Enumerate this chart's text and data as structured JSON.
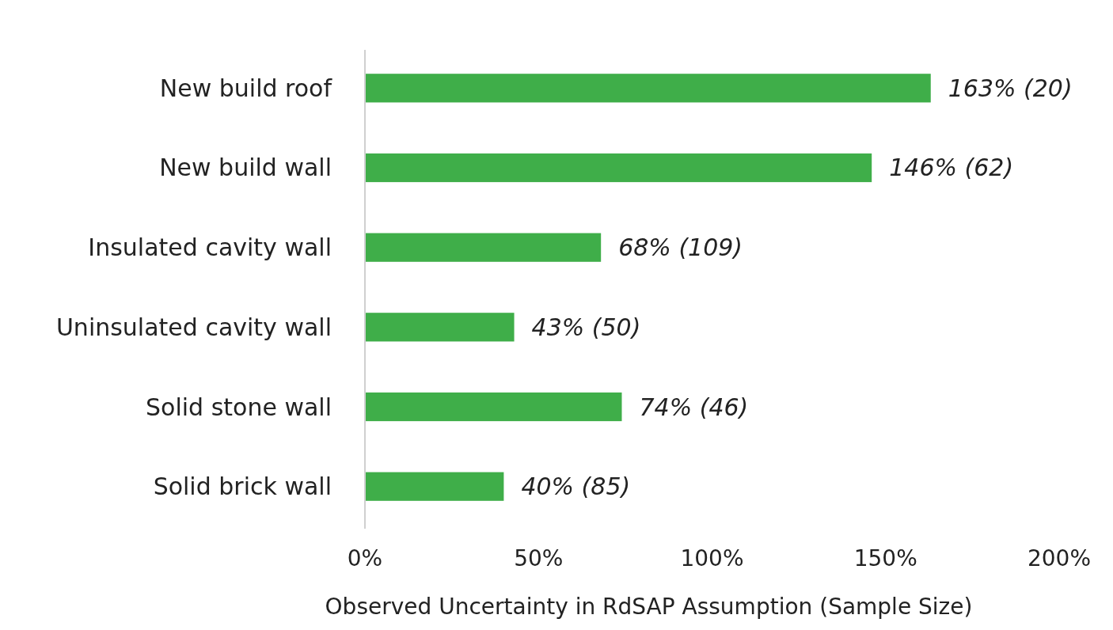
{
  "chart_data": {
    "type": "bar",
    "orientation": "horizontal",
    "xlabel": "Observed Uncertainty in RdSAP Assumption (Sample Size)",
    "categories": [
      "New build roof",
      "New build wall",
      "Insulated cavity wall",
      "Uninsulated cavity wall",
      "Solid stone wall",
      "Solid brick wall"
    ],
    "values": [
      163,
      146,
      68,
      43,
      74,
      40
    ],
    "value_labels": [
      "163% (20)",
      "146% (62)",
      "68% (109)",
      "43% (50)",
      "74% (46)",
      "40% (85)"
    ],
    "color": "#3fae49",
    "xlim": [
      0,
      200
    ],
    "xticks": [
      {
        "value": 0,
        "label": "0%"
      },
      {
        "value": 50,
        "label": "50%"
      },
      {
        "value": 100,
        "label": "100%"
      },
      {
        "value": 150,
        "label": "150%"
      },
      {
        "value": 200,
        "label": "200%"
      }
    ],
    "grid": false
  }
}
